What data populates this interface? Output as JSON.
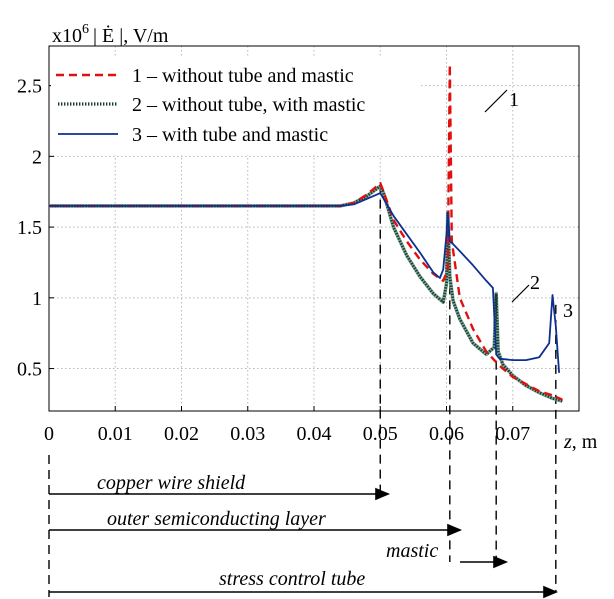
{
  "chart_data": {
    "type": "line",
    "ylabel_prefix": "x10",
    "ylabel_exp": "6",
    "ylabel_rest": "| Ė |, V/m",
    "xlabel_sym": "z",
    "xlabel_unit": ", m",
    "xlim": [
      0,
      0.08
    ],
    "ylim": [
      0.2,
      2.78
    ],
    "xticks": [
      "0",
      "0.01",
      "0.02",
      "0.03",
      "0.04",
      "0.05",
      "0.06",
      "0.07"
    ],
    "xtick_values": [
      0,
      0.01,
      0.02,
      0.03,
      0.04,
      0.05,
      0.06,
      0.07
    ],
    "yticks": [
      "0.5",
      "1",
      "1.5",
      "2",
      "2.5"
    ],
    "ytick_values": [
      0.5,
      1,
      1.5,
      2,
      2.5
    ],
    "grid": true,
    "legend_position": "top-left",
    "colors": {
      "s1": "#e01010",
      "s2": "#1a3a2a",
      "s3": "#0d2f8f"
    },
    "series": [
      {
        "name": "1 – without tube and mastic",
        "style": "dashed",
        "points": [
          [
            0,
            1.65
          ],
          [
            0.044,
            1.65
          ],
          [
            0.046,
            1.67
          ],
          [
            0.048,
            1.73
          ],
          [
            0.05,
            1.81
          ],
          [
            0.0505,
            1.75
          ],
          [
            0.052,
            1.55
          ],
          [
            0.054,
            1.4
          ],
          [
            0.056,
            1.27
          ],
          [
            0.058,
            1.17
          ],
          [
            0.0595,
            1.12
          ],
          [
            0.0602,
            1.2
          ],
          [
            0.0605,
            2.65
          ],
          [
            0.0608,
            1.4
          ],
          [
            0.062,
            1.0
          ],
          [
            0.064,
            0.78
          ],
          [
            0.066,
            0.62
          ],
          [
            0.068,
            0.52
          ],
          [
            0.07,
            0.44
          ],
          [
            0.072,
            0.39
          ],
          [
            0.074,
            0.34
          ],
          [
            0.076,
            0.31
          ],
          [
            0.0775,
            0.28
          ]
        ]
      },
      {
        "name": "2 – without tube, with mastic",
        "style": "beaded",
        "points": [
          [
            0,
            1.65
          ],
          [
            0.044,
            1.65
          ],
          [
            0.046,
            1.67
          ],
          [
            0.048,
            1.72
          ],
          [
            0.05,
            1.79
          ],
          [
            0.0505,
            1.74
          ],
          [
            0.052,
            1.5
          ],
          [
            0.054,
            1.3
          ],
          [
            0.056,
            1.15
          ],
          [
            0.058,
            1.03
          ],
          [
            0.0595,
            0.97
          ],
          [
            0.06,
            1.1
          ],
          [
            0.0602,
            1.6
          ],
          [
            0.0605,
            1.15
          ],
          [
            0.061,
            0.98
          ],
          [
            0.062,
            0.85
          ],
          [
            0.064,
            0.68
          ],
          [
            0.066,
            0.6
          ],
          [
            0.0672,
            0.65
          ],
          [
            0.0675,
            1.03
          ],
          [
            0.0678,
            0.62
          ],
          [
            0.0685,
            0.53
          ],
          [
            0.07,
            0.45
          ],
          [
            0.072,
            0.38
          ],
          [
            0.074,
            0.33
          ],
          [
            0.076,
            0.29
          ],
          [
            0.0775,
            0.27
          ]
        ]
      },
      {
        "name": "3 – with tube and mastic",
        "style": "solid",
        "points": [
          [
            0,
            1.65
          ],
          [
            0.044,
            1.65
          ],
          [
            0.046,
            1.66
          ],
          [
            0.048,
            1.7
          ],
          [
            0.05,
            1.74
          ],
          [
            0.051,
            1.66
          ],
          [
            0.052,
            1.58
          ],
          [
            0.054,
            1.45
          ],
          [
            0.056,
            1.32
          ],
          [
            0.058,
            1.18
          ],
          [
            0.059,
            1.14
          ],
          [
            0.0595,
            1.2
          ],
          [
            0.06,
            1.45
          ],
          [
            0.0602,
            1.6
          ],
          [
            0.0605,
            1.4
          ],
          [
            0.061,
            1.38
          ],
          [
            0.062,
            1.33
          ],
          [
            0.064,
            1.23
          ],
          [
            0.066,
            1.12
          ],
          [
            0.067,
            1.07
          ],
          [
            0.0675,
            0.6
          ],
          [
            0.068,
            0.57
          ],
          [
            0.07,
            0.56
          ],
          [
            0.072,
            0.56
          ],
          [
            0.074,
            0.58
          ],
          [
            0.0755,
            0.68
          ],
          [
            0.076,
            1.02
          ],
          [
            0.0765,
            0.8
          ],
          [
            0.077,
            0.47
          ]
        ]
      }
    ],
    "annotations": [
      "1",
      "2",
      "3"
    ],
    "regions": [
      {
        "label": "copper wire shield",
        "end": 0.05
      },
      {
        "label": "outer semiconducting layer",
        "end": 0.0605
      },
      {
        "label": "mastic",
        "start": 0.0605,
        "end": 0.0675
      },
      {
        "label": "stress control tube",
        "end": 0.0765
      }
    ]
  }
}
